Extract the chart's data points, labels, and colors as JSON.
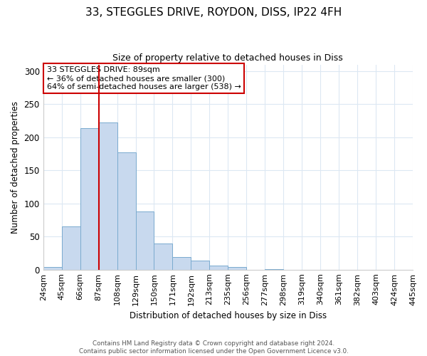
{
  "title": "33, STEGGLES DRIVE, ROYDON, DISS, IP22 4FH",
  "subtitle": "Size of property relative to detached houses in Diss",
  "xlabel": "Distribution of detached houses by size in Diss",
  "ylabel": "Number of detached properties",
  "bin_labels": [
    "24sqm",
    "45sqm",
    "66sqm",
    "87sqm",
    "108sqm",
    "129sqm",
    "150sqm",
    "171sqm",
    "192sqm",
    "213sqm",
    "235sqm",
    "256sqm",
    "277sqm",
    "298sqm",
    "319sqm",
    "340sqm",
    "361sqm",
    "382sqm",
    "403sqm",
    "424sqm",
    "445sqm"
  ],
  "bar_values": [
    4,
    65,
    214,
    222,
    177,
    88,
    39,
    19,
    14,
    6,
    4,
    0,
    1,
    0,
    0,
    0,
    0,
    0,
    0,
    0,
    1
  ],
  "bar_color": "#c8d9ee",
  "bar_edgecolor": "#7aabcf",
  "vline_x_index": 2,
  "vline_color": "#cc0000",
  "annotation_text": "33 STEGGLES DRIVE: 89sqm\n← 36% of detached houses are smaller (300)\n64% of semi-detached houses are larger (538) →",
  "annotation_box_edgecolor": "#cc0000",
  "ylim": [
    0,
    310
  ],
  "yticks": [
    0,
    50,
    100,
    150,
    200,
    250,
    300
  ],
  "footer_line1": "Contains HM Land Registry data © Crown copyright and database right 2024.",
  "footer_line2": "Contains public sector information licensed under the Open Government Licence v3.0.",
  "bg_color": "#ffffff",
  "grid_color": "#dce8f3"
}
